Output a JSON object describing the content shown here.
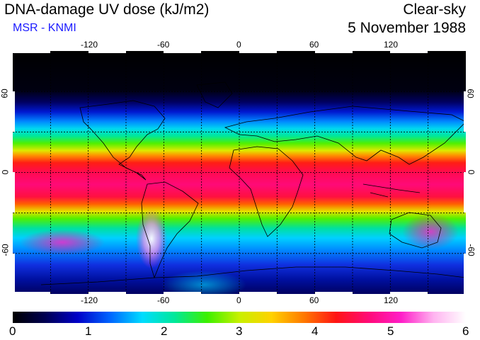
{
  "header": {
    "title": "DNA-damage UV dose (kJ/m2)",
    "source": "MSR - KNMI",
    "sky_condition": "Clear-sky",
    "date": "5 November 1988"
  },
  "colors": {
    "source_text": "#1a1aff",
    "palette": [
      "#000000",
      "#000050",
      "#0000c8",
      "#0064ff",
      "#00dcff",
      "#00e89a",
      "#3cf000",
      "#c8f000",
      "#ffd200",
      "#ff7800",
      "#ff1414",
      "#ff0a78",
      "#ff1ec8",
      "#ffb4f0",
      "#ffffff"
    ]
  },
  "map": {
    "lon_ticks": [
      "-120",
      "-60",
      "0",
      "60",
      "120"
    ],
    "lat_ticks_left": [
      "60",
      "0",
      "-60"
    ],
    "lat_ticks_right": [
      "60",
      "0",
      "-60"
    ],
    "lon_range": [
      -180,
      180
    ],
    "lat_range": [
      -90,
      90
    ],
    "graticule_lon": [
      -150,
      -120,
      -90,
      -60,
      -30,
      0,
      30,
      60,
      90,
      120,
      150
    ],
    "graticule_lat": [
      -60,
      -30,
      0,
      30,
      60
    ]
  },
  "colorbar": {
    "labels": [
      "0",
      "1",
      "2",
      "3",
      "4",
      "5",
      "6"
    ],
    "min": 0,
    "max": 6
  }
}
